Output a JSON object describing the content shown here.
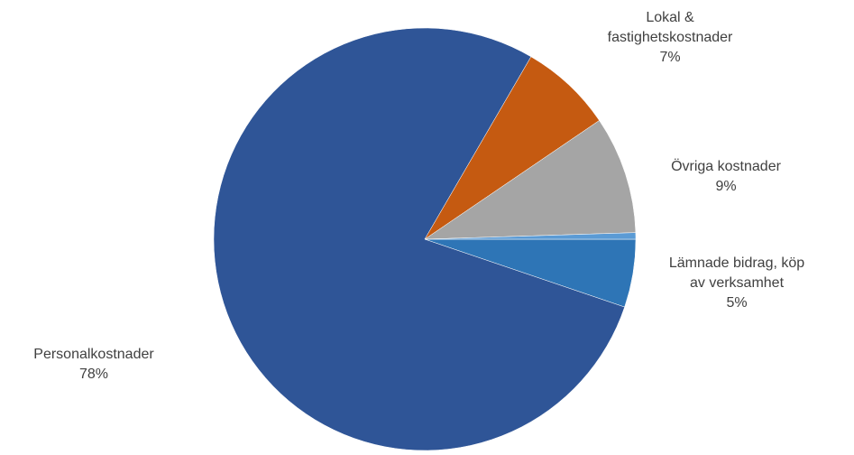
{
  "chart_data": {
    "type": "pie",
    "title": "",
    "start_angle_deg": 0,
    "direction": "clockwise",
    "slices": [
      {
        "name": "Lämnade bidrag, köp av verksamhet",
        "label_lines": [
          "Lämnade bidrag, köp",
          "av verksamhet"
        ],
        "percent_label": "5%",
        "value": 5.2,
        "color": "#2E75B6"
      },
      {
        "name": "Personalkostnader",
        "label_lines": [
          "Personalkostnader"
        ],
        "percent_label": "78%",
        "value": 78.2,
        "color": "#2F5597"
      },
      {
        "name": "Lokal & fastighetskostnader",
        "label_lines": [
          "Lokal &",
          "fastighetskostnader"
        ],
        "percent_label": "7%",
        "value": 7.1,
        "color": "#C55A11"
      },
      {
        "name": "Övriga kostnader",
        "label_lines": [
          "Övriga kostnader"
        ],
        "percent_label": "9%",
        "value": 9.0,
        "color": "#A5A5A5"
      },
      {
        "name": "",
        "label_lines": [],
        "percent_label": "",
        "value": 0.5,
        "color": "#5B9BD5"
      }
    ]
  }
}
